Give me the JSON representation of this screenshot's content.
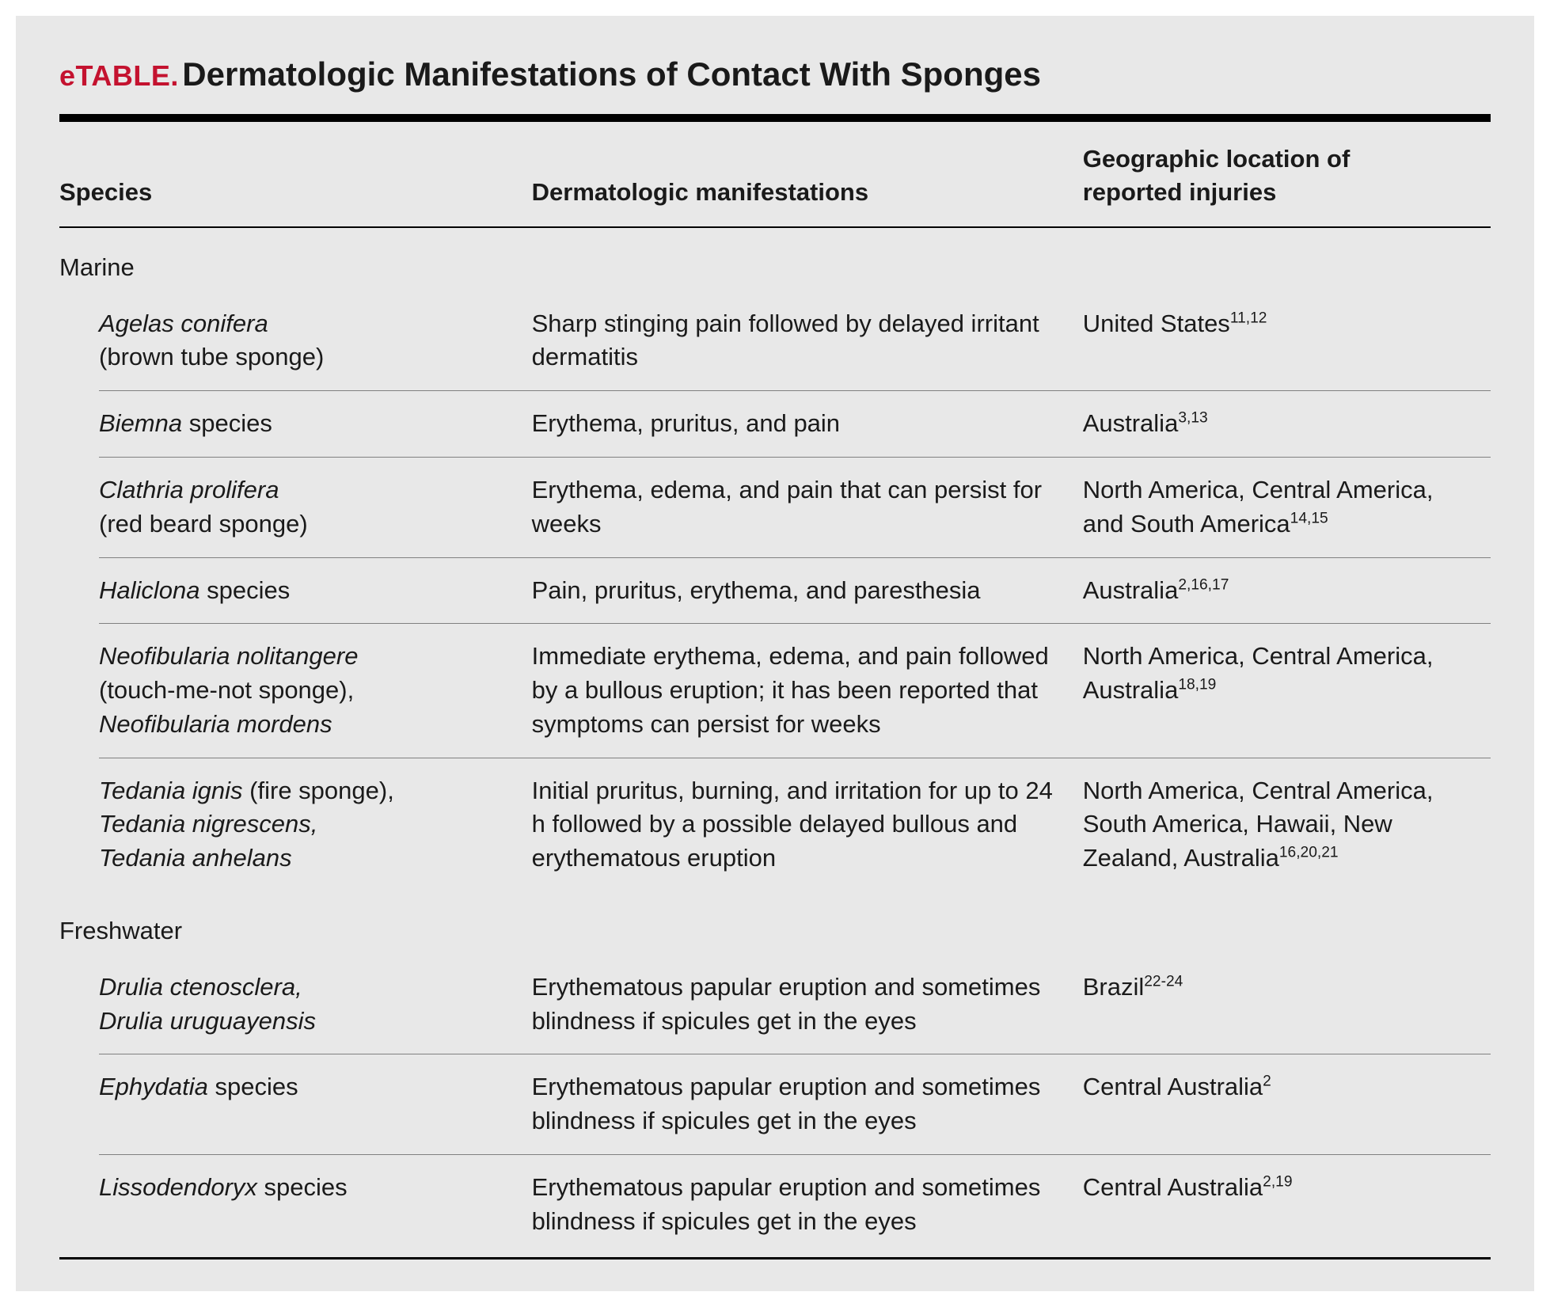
{
  "table_label": "eTABLE.",
  "table_title": "Dermatologic Manifestations of Contact With Sponges",
  "columns": {
    "c1": "Species",
    "c2": "Dermatologic manifestations",
    "c3_l1": "Geographic location of",
    "c3_l2": "reported injuries"
  },
  "sections": [
    {
      "heading": "Marine"
    },
    {
      "heading": "Freshwater"
    }
  ],
  "rows": {
    "r1": {
      "species_italic_1": "Agelas conifera",
      "species_plain_1": "(brown tube sponge)",
      "manifest": "Sharp stinging pain followed by delayed irritant dermatitis",
      "loc_text": "United States",
      "loc_refs": "11,12"
    },
    "r2": {
      "species_italic_1": "Biemna",
      "species_plain_after": " species",
      "manifest": "Erythema, pruritus, and pain",
      "loc_text": "Australia",
      "loc_refs": "3,13"
    },
    "r3": {
      "species_italic_1": "Clathria prolifera",
      "species_plain_1": "(red beard sponge)",
      "manifest": "Erythema, edema, and pain that can persist for weeks",
      "loc_text": "North America, Central America, and South America",
      "loc_refs": "14,15"
    },
    "r4": {
      "species_italic_1": "Haliclona",
      "species_plain_after": " species",
      "manifest": "Pain, pruritus, erythema, and paresthesia",
      "loc_text": "Australia",
      "loc_refs": "2,16,17"
    },
    "r5": {
      "species_italic_1": "Neofibularia nolitangere",
      "species_plain_1": "(touch-me-not sponge),",
      "species_italic_2": "Neofibularia mordens",
      "manifest": "Immediate erythema, edema, and pain followed by a bullous eruption; it has been reported that symptoms can persist for weeks",
      "loc_text": "North America, Central America, Australia",
      "loc_refs": "18,19"
    },
    "r6": {
      "species_italic_1": "Tedania ignis",
      "species_plain_after_1": " (fire sponge),",
      "species_italic_2": "Tedania nigrescens,",
      "species_italic_3": "Tedania anhelans",
      "manifest": "Initial pruritus, burning, and irritation for up to 24 h followed by a possible delayed bullous and erythematous eruption",
      "loc_text": "North America, Central America, South America, Hawaii, New Zealand, Australia",
      "loc_refs": "16,20,21"
    },
    "r7": {
      "species_italic_1": "Drulia ctenosclera,",
      "species_italic_2": "Drulia uruguayensis",
      "manifest": "Erythematous papular eruption and sometimes blindness if spicules get in the eyes",
      "loc_text": "Brazil",
      "loc_refs": "22-24"
    },
    "r8": {
      "species_italic_1": "Ephydatia",
      "species_plain_after": " species",
      "manifest": "Erythematous papular eruption and sometimes blindness if spicules get in the eyes",
      "loc_text": "Central Australia",
      "loc_refs": "2"
    },
    "r9": {
      "species_italic_1": "Lissodendoryx",
      "species_plain_after": " species",
      "manifest": "Erythematous papular eruption and sometimes blindness if spicules get in the eyes",
      "loc_text": "Central Australia",
      "loc_refs": "2,19"
    }
  },
  "colors": {
    "label": "#c4122f",
    "text": "#1a1a1a",
    "bg": "#e8e8e8",
    "rule_grey": "#808080"
  }
}
